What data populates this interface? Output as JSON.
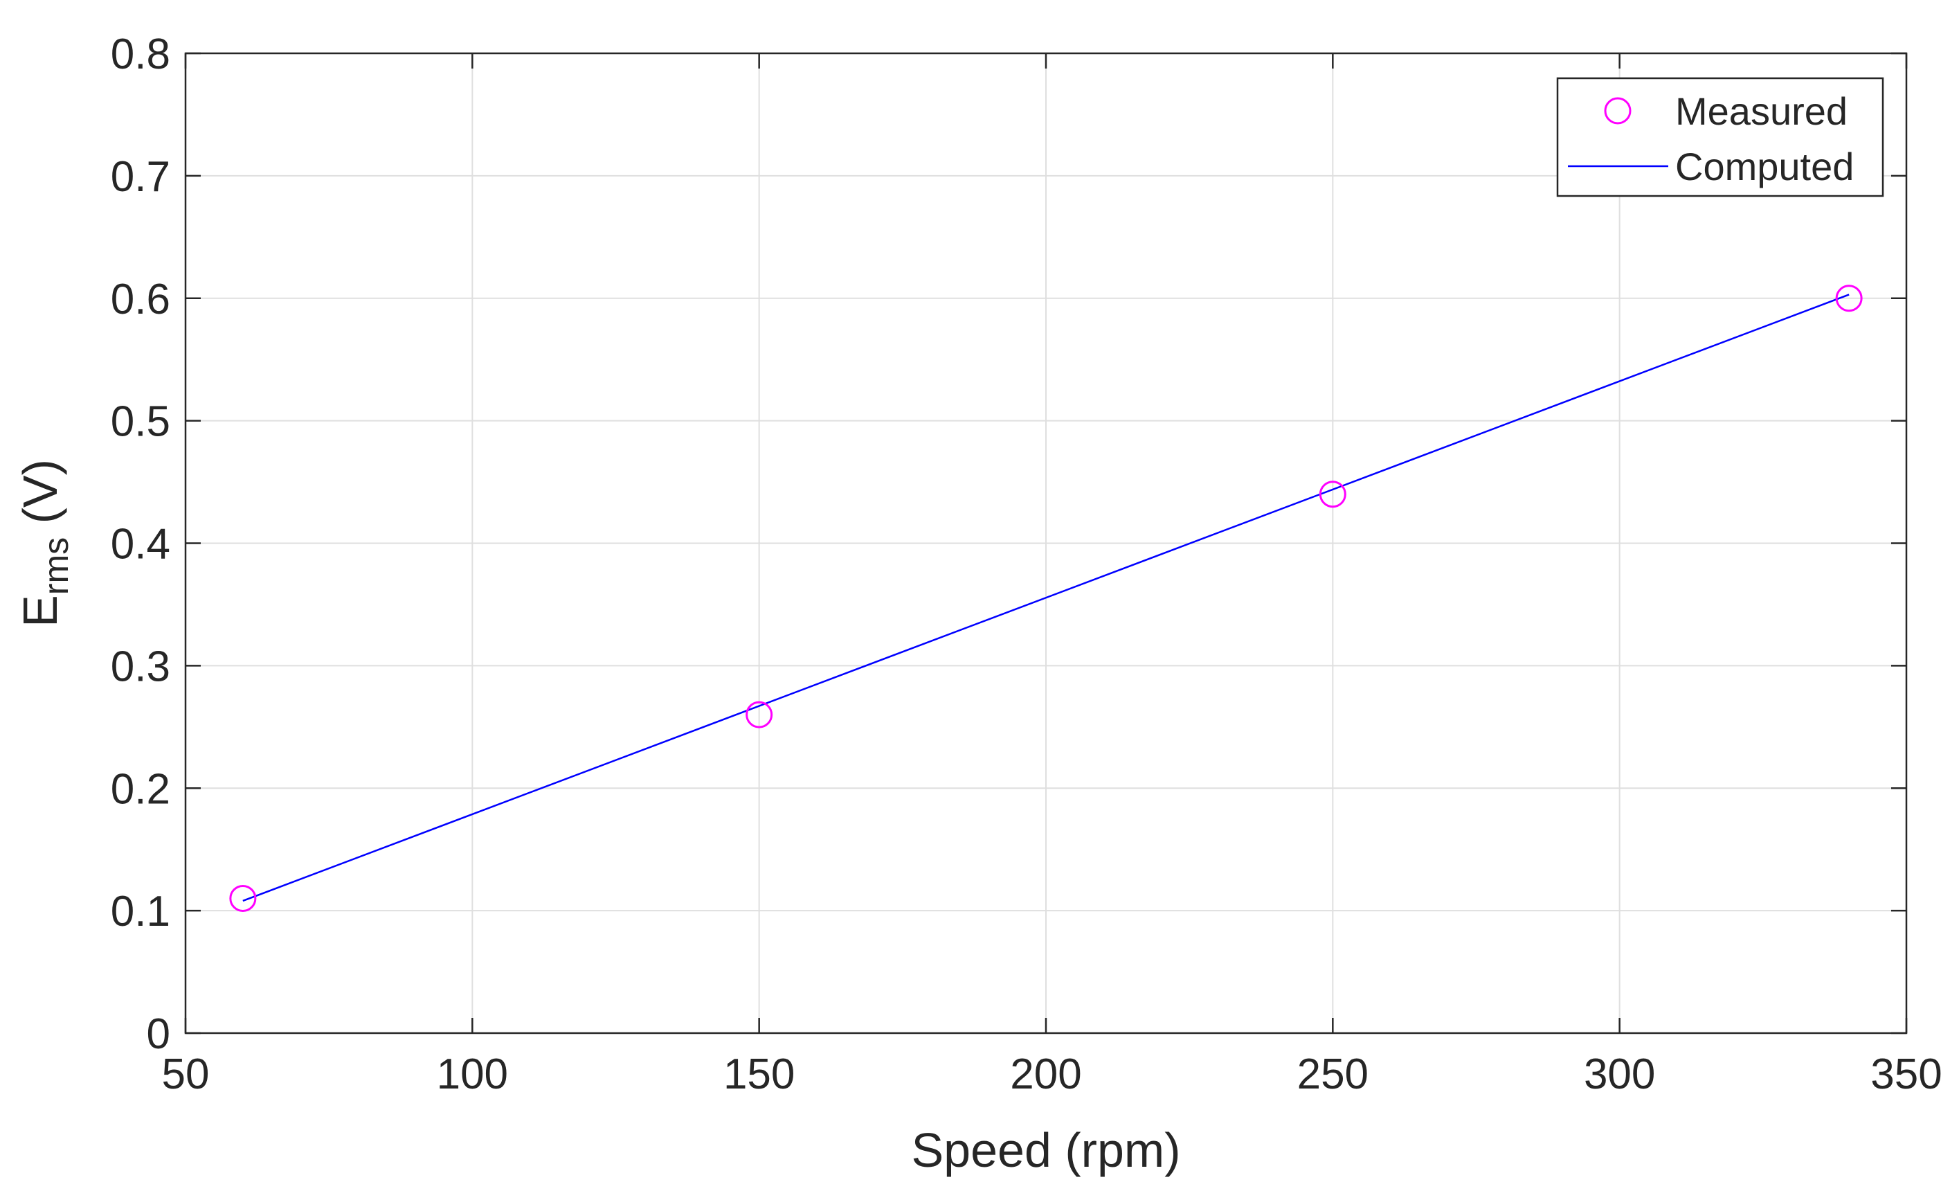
{
  "chart_data": {
    "type": "line",
    "title": "",
    "xlabel": "Speed (rpm)",
    "ylabel": {
      "main": "E",
      "subscript": "rms",
      "suffix": " (V)"
    },
    "xlim": [
      50,
      350
    ],
    "ylim": [
      0,
      0.8
    ],
    "xticks": [
      "50",
      "100",
      "150",
      "200",
      "250",
      "300",
      "350"
    ],
    "yticks": [
      "0",
      "0.1",
      "0.2",
      "0.3",
      "0.4",
      "0.5",
      "0.6",
      "0.7",
      "0.8"
    ],
    "grid": true,
    "legend_position": "top-right",
    "series": [
      {
        "name": "Measured",
        "style": "markers",
        "marker": "circle",
        "color": "#ff00ff",
        "x": [
          60,
          150,
          250,
          340
        ],
        "y": [
          0.11,
          0.26,
          0.44,
          0.6
        ]
      },
      {
        "name": "Computed",
        "style": "line",
        "color": "#0000ff",
        "x": [
          60,
          340
        ],
        "y": [
          0.108,
          0.603
        ]
      }
    ]
  }
}
